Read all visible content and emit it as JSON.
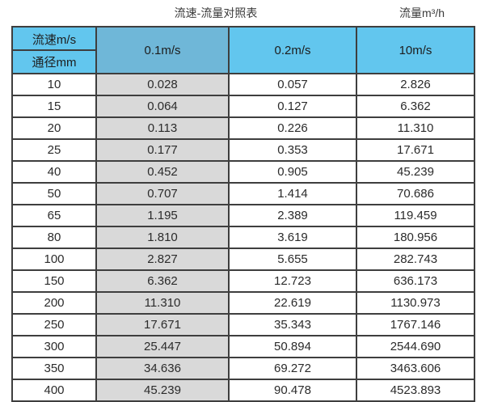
{
  "titles": {
    "main": "流速-流量对照表",
    "unit": "流量m³/h"
  },
  "table": {
    "corner_top": "流速m/s",
    "corner_bottom": "通径mm",
    "columns": [
      "0.1m/s",
      "0.2m/s",
      "10m/s"
    ],
    "rows": [
      [
        "10",
        "0.028",
        "0.057",
        "2.826"
      ],
      [
        "15",
        "0.064",
        "0.127",
        "6.362"
      ],
      [
        "20",
        "0.113",
        "0.226",
        "11.310"
      ],
      [
        "25",
        "0.177",
        "0.353",
        "17.671"
      ],
      [
        "40",
        "0.452",
        "0.905",
        "45.239"
      ],
      [
        "50",
        "0.707",
        "1.414",
        "70.686"
      ],
      [
        "65",
        "1.195",
        "2.389",
        "119.459"
      ],
      [
        "80",
        "1.810",
        "3.619",
        "180.956"
      ],
      [
        "100",
        "2.827",
        "5.655",
        "282.743"
      ],
      [
        "150",
        "6.362",
        "12.723",
        "636.173"
      ],
      [
        "200",
        "11.310",
        "22.619",
        "1130.973"
      ],
      [
        "250",
        "17.671",
        "35.343",
        "1767.146"
      ],
      [
        "300",
        "25.447",
        "50.894",
        "2544.690"
      ],
      [
        "350",
        "34.636",
        "69.272",
        "3463.606"
      ],
      [
        "400",
        "45.239",
        "90.478",
        "4523.893"
      ]
    ]
  },
  "colors": {
    "header_light_blue": "#62c6ee",
    "header_dark_blue": "#6fb7d8",
    "gray_column": "#d9d9d9",
    "grid_border": "#3e3e3e"
  },
  "chart_data": {
    "type": "table",
    "title": "流速-流量对照表",
    "unit_label": "流量m³/h",
    "column_header_label": "流速m/s",
    "row_header_label": "通径mm",
    "categories": [
      10,
      15,
      20,
      25,
      40,
      50,
      65,
      80,
      100,
      150,
      200,
      250,
      300,
      350,
      400
    ],
    "series": [
      {
        "name": "0.1m/s",
        "values": [
          0.028,
          0.064,
          0.113,
          0.177,
          0.452,
          0.707,
          1.195,
          1.81,
          2.827,
          6.362,
          11.31,
          17.671,
          25.447,
          34.636,
          45.239
        ]
      },
      {
        "name": "0.2m/s",
        "values": [
          0.057,
          0.127,
          0.226,
          0.353,
          0.905,
          1.414,
          2.389,
          3.619,
          5.655,
          12.723,
          22.619,
          35.343,
          50.894,
          69.272,
          90.478
        ]
      },
      {
        "name": "10m/s",
        "values": [
          2.826,
          6.362,
          11.31,
          17.671,
          45.239,
          70.686,
          119.459,
          180.956,
          282.743,
          636.173,
          1130.973,
          1767.146,
          2544.69,
          3463.606,
          4523.893
        ]
      }
    ]
  }
}
